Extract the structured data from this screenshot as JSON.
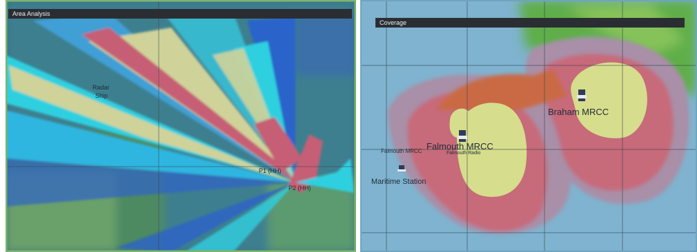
{
  "left_panel": {
    "title": "Area Analysis",
    "labels": {
      "place_line1": "Radar",
      "place_line2": "Ship",
      "marker_1": "P1 (HH)",
      "marker_2": "P2 (HH)"
    }
  },
  "right_panel": {
    "title": "Coverage",
    "labels": {
      "station_right": "Braham MRCC",
      "station_center": "Falmouth MRCC",
      "station_center_small": "Falmouth Radio",
      "station_small_left": "Falmouth MRCC",
      "station_bottom": "Maritime Station"
    }
  },
  "colors": {
    "water": "#7fb3cf",
    "coverage_high": "#d6dd8c",
    "coverage_mid": "#c76b7a",
    "coverage_low": "#a98fa8",
    "land": "#5fae4a",
    "radar_red": "#c65f74",
    "radar_yellow": "#cfd39a",
    "radar_cyan": "#2fd0e0",
    "radar_blue": "#2c63c9"
  }
}
